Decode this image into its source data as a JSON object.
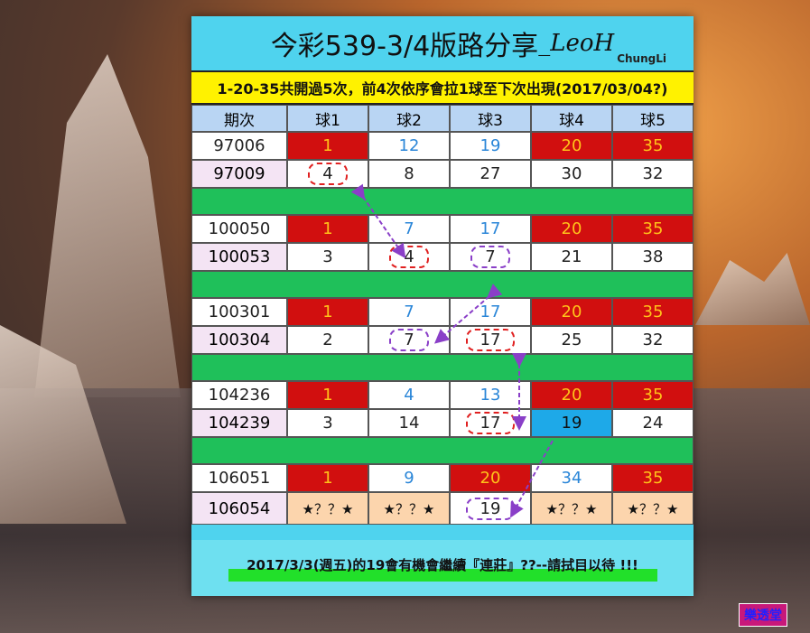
{
  "title": {
    "main": "今彩539-3/4版路分享",
    "signature": "_LeoH",
    "author": "ChungLi"
  },
  "subtitle": "1-20-35共開過5次，前4次依序會拉1球至下次出現(2017/03/04?)",
  "headers": [
    "期次",
    "球1",
    "球2",
    "球3",
    "球4",
    "球5"
  ],
  "groups": [
    {
      "rows": [
        {
          "period": "97006",
          "balls": [
            "1",
            "12",
            "19",
            "20",
            "35"
          ]
        },
        {
          "period": "97009",
          "balls": [
            "4",
            "8",
            "27",
            "30",
            "32"
          ]
        }
      ]
    },
    {
      "rows": [
        {
          "period": "100050",
          "balls": [
            "1",
            "7",
            "17",
            "20",
            "35"
          ]
        },
        {
          "period": "100053",
          "balls": [
            "3",
            "4",
            "7",
            "21",
            "38"
          ]
        }
      ]
    },
    {
      "rows": [
        {
          "period": "100301",
          "balls": [
            "1",
            "7",
            "17",
            "20",
            "35"
          ]
        },
        {
          "period": "100304",
          "balls": [
            "2",
            "7",
            "17",
            "25",
            "32"
          ]
        }
      ]
    },
    {
      "rows": [
        {
          "period": "104236",
          "balls": [
            "1",
            "4",
            "13",
            "20",
            "35"
          ]
        },
        {
          "period": "104239",
          "balls": [
            "3",
            "14",
            "17",
            "19",
            "24"
          ]
        }
      ]
    },
    {
      "rows": [
        {
          "period": "106051",
          "balls": [
            "1",
            "9",
            "20",
            "34",
            "35"
          ]
        },
        {
          "period": "106054",
          "balls": [
            "★？？★",
            "★？？★",
            "19",
            "★？？★",
            "★？？★"
          ]
        }
      ]
    }
  ],
  "footer": "2017/3/3(週五)的19會有機會繼續『連莊』??--請拭目以待 !!!",
  "watermark": "樂透堂",
  "colors": {
    "highlight_red": "#d10f0f",
    "row_separator": "#1fc05a",
    "subtitle_bg": "#fff200",
    "title_bg": "#4fd3ee"
  }
}
